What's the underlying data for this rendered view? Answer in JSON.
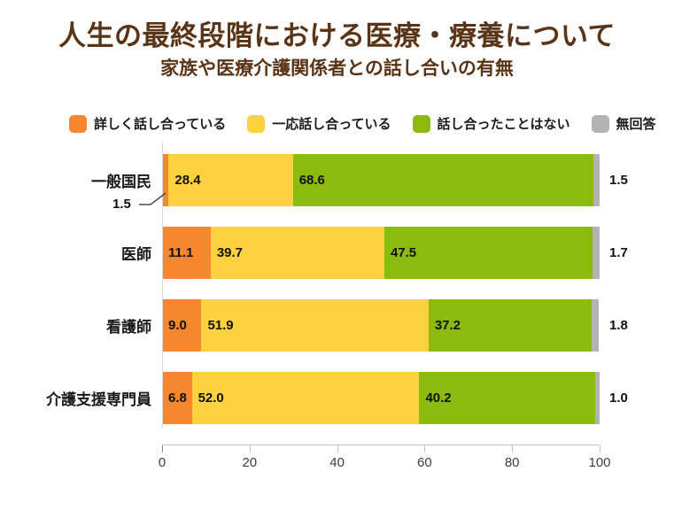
{
  "title": "人生の最終段階における医療・療養について",
  "subtitle": "家族や医療介護関係者との話し合いの有無",
  "colors": {
    "title_text": "#5a3417",
    "detail": "#f6872e",
    "some": "#fdd13f",
    "never": "#8cba0f",
    "noanswer": "#b3b3b3",
    "axis": "#c3c3c3"
  },
  "legend": [
    {
      "label": "詳しく話し合っている"
    },
    {
      "label": "一応話し合っている"
    },
    {
      "label": "話し合ったことはない"
    },
    {
      "label": "無回答"
    }
  ],
  "chart_data": {
    "type": "bar",
    "orientation": "horizontal",
    "stacked": true,
    "title": "人生の最終段階における医療・療養について",
    "subtitle": "家族や医療介護関係者との話し合いの有無",
    "categories": [
      "一般国民",
      "医師",
      "看護師",
      "介護支援専門員"
    ],
    "series": [
      {
        "name": "詳しく話し合っている",
        "color": "#f6872e",
        "values": [
          1.5,
          11.1,
          9.0,
          6.8
        ]
      },
      {
        "name": "一応話し合っている",
        "color": "#fdd13f",
        "values": [
          28.4,
          39.7,
          51.9,
          52.0
        ]
      },
      {
        "name": "話し合ったことはない",
        "color": "#8cba0f",
        "values": [
          68.6,
          47.5,
          37.2,
          40.2
        ]
      },
      {
        "name": "無回答",
        "color": "#b3b3b3",
        "values": [
          1.5,
          1.7,
          1.8,
          1.0
        ]
      }
    ],
    "xlim": [
      0,
      100
    ],
    "xticks": [
      0,
      20,
      40,
      60,
      80,
      100
    ],
    "legend_position": "top",
    "grid": false,
    "annotation": {
      "target_category": "一般国民",
      "target_series": "詳しく話し合っている",
      "label": "1.5"
    }
  },
  "rows": [
    {
      "label": "一般国民",
      "some": "28.4",
      "never": "68.6",
      "noanswer": "1.5"
    },
    {
      "label": "医師",
      "detail": "11.1",
      "some": "39.7",
      "never": "47.5",
      "noanswer": "1.7"
    },
    {
      "label": "看護師",
      "detail": "9.0",
      "some": "51.9",
      "never": "37.2",
      "noanswer": "1.8"
    },
    {
      "label": "介護支援専門員",
      "detail": "6.8",
      "some": "52.0",
      "never": "40.2",
      "noanswer": "1.0"
    }
  ],
  "callout": {
    "label": "1.5"
  },
  "axis": {
    "ticks": [
      "0",
      "20",
      "40",
      "60",
      "80",
      "100"
    ]
  }
}
